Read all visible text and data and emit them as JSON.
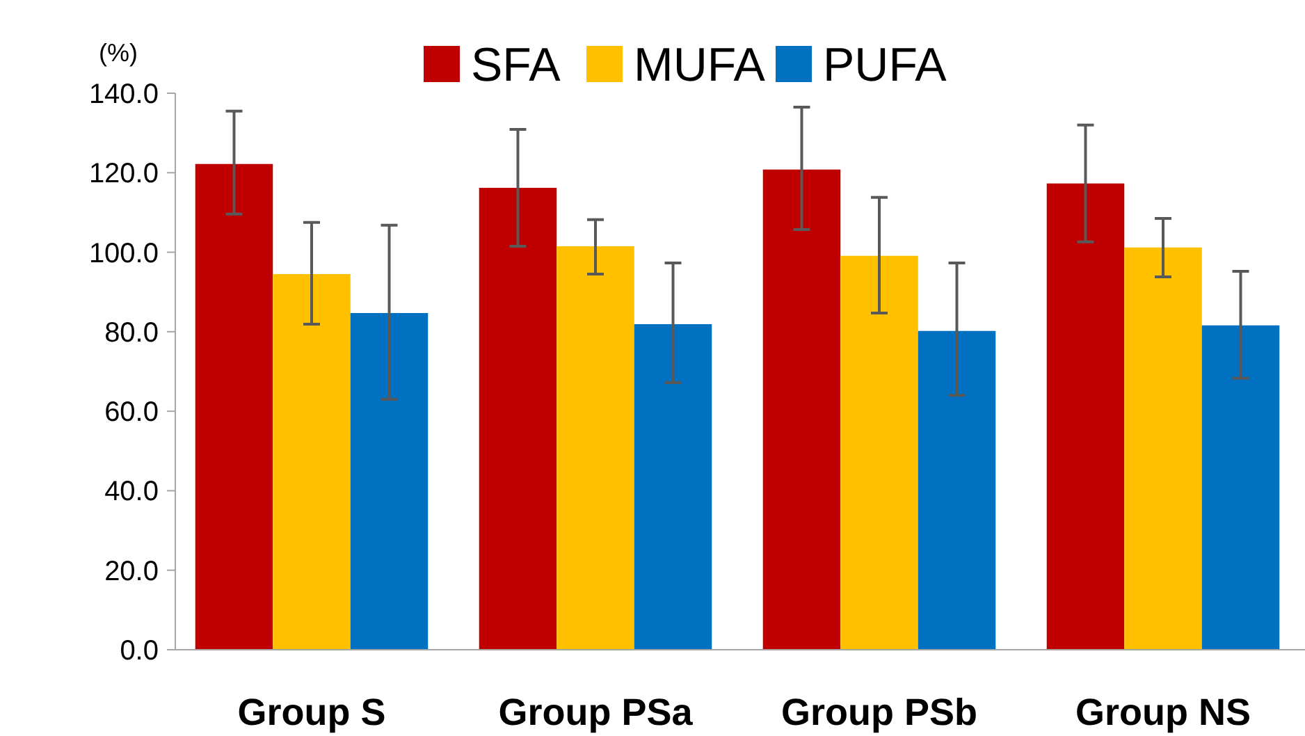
{
  "chart_data": {
    "type": "bar",
    "ylabel": "(%)",
    "categories": [
      "Group S",
      "Group PSa",
      "Group PSb",
      "Group NS"
    ],
    "series": [
      {
        "name": "SFA",
        "color": "#c00000",
        "values": [
          122.2,
          116.2,
          120.8,
          117.3
        ],
        "errors": [
          [
            109.6,
            135.5
          ],
          [
            101.5,
            130.9
          ],
          [
            105.7,
            136.5
          ],
          [
            102.6,
            132.0
          ]
        ]
      },
      {
        "name": "MUFA",
        "color": "#ffc000",
        "values": [
          94.5,
          101.5,
          99.1,
          101.2
        ],
        "errors": [
          [
            81.9,
            107.5
          ],
          [
            94.5,
            108.2
          ],
          [
            84.7,
            113.8
          ],
          [
            93.8,
            108.5
          ]
        ]
      },
      {
        "name": "PUFA",
        "color": "#0070c0",
        "values": [
          84.7,
          81.9,
          80.2,
          81.6
        ],
        "errors": [
          [
            63.0,
            106.8
          ],
          [
            67.2,
            97.3
          ],
          [
            64.0,
            97.3
          ],
          [
            68.3,
            95.2
          ]
        ]
      }
    ],
    "ylim": [
      0,
      140
    ],
    "yticks": [
      {
        "value": 0,
        "label": "0.0"
      },
      {
        "value": 20,
        "label": "20.0"
      },
      {
        "value": 40,
        "label": "40.0"
      },
      {
        "value": 60,
        "label": "60.0"
      },
      {
        "value": 80,
        "label": "80.0"
      },
      {
        "value": 100,
        "label": "100.0"
      },
      {
        "value": 120,
        "label": "120.0"
      },
      {
        "value": 140,
        "label": "140.0"
      }
    ],
    "grid": false,
    "legend": "top"
  }
}
